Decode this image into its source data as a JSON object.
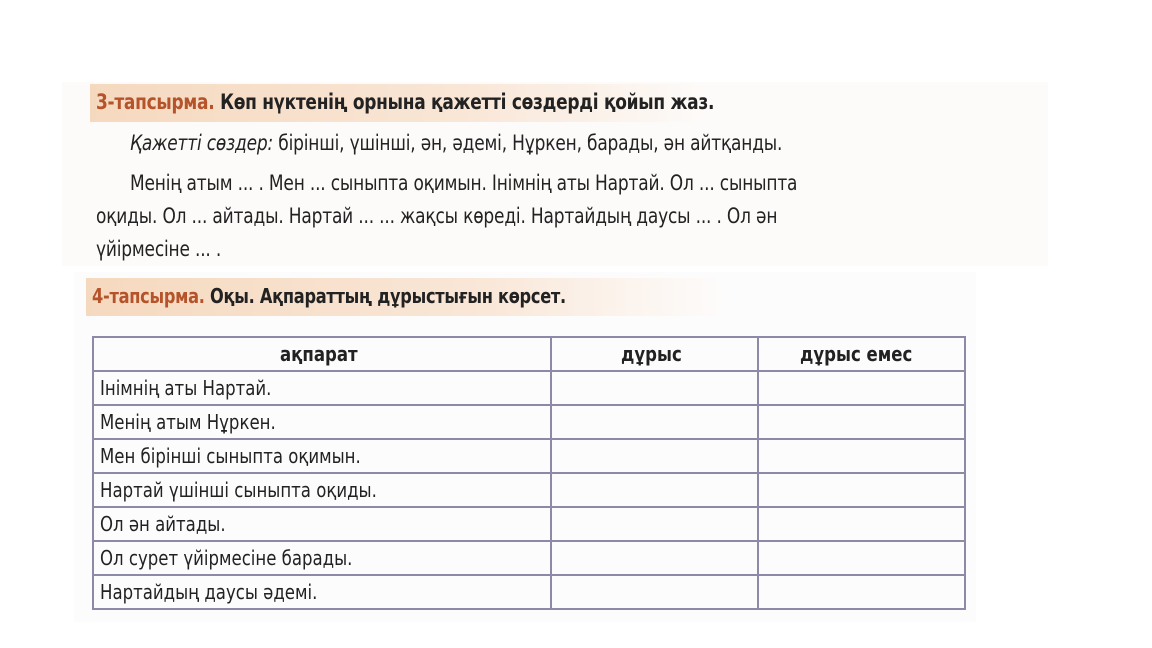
{
  "task3": {
    "number": "3-тапсырма.",
    "instruction": "Көп нүктенің орнына қажетті сөздерді қойып жаз.",
    "words_label": "Қажетті сөздер:",
    "words": "бірінші, үшінші, ән, әдемі, Нұркен, барады, ән айтқанды.",
    "text_lines": [
      "Менің атым ... . Мен ... сыныпта оқимын. Інімнің аты Нартай. Ол ... сыныпта",
      "оқиды. Ол ... айтады. Нартай ... ... жақсы көреді. Нартайдың даусы ... . Ол ән",
      "үйірмесіне ... ."
    ]
  },
  "task4": {
    "number": "4-тапсырма.",
    "instruction": "Оқы. Ақпараттың дұрыстығын көрсет.",
    "table": {
      "headers": [
        "ақпарат",
        "дұрыс",
        "дұрыс емес"
      ],
      "rows": [
        "Інімнің аты Нартай.",
        "Менің атым Нұркен.",
        "Мен бірінші сыныпта оқимын.",
        "Нартай үшінші сыныпта оқиды.",
        "Ол ән айтады.",
        "Ол сурет үйірмесіне барады.",
        "Нартайдың даусы әдемі."
      ]
    }
  }
}
